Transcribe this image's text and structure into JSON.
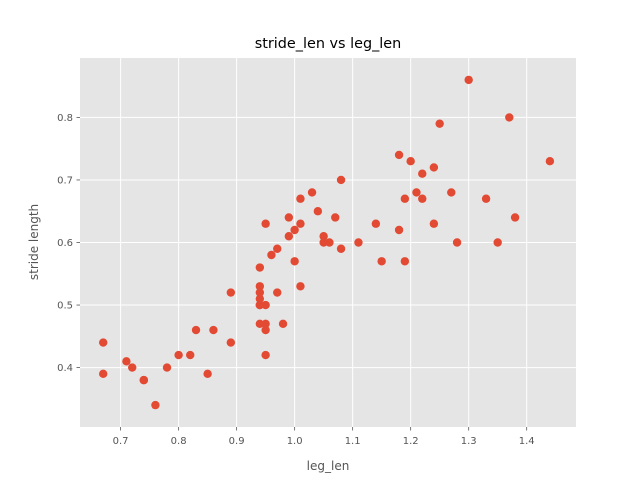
{
  "chart_data": {
    "type": "scatter",
    "title": "stride_len vs leg_len",
    "xlabel": "leg_len",
    "ylabel": "stride length",
    "xlim": [
      0.63,
      1.485
    ],
    "ylim": [
      0.305,
      0.895
    ],
    "xticks": [
      0.7,
      0.8,
      0.9,
      1.0,
      1.1,
      1.2,
      1.3,
      1.4
    ],
    "xtick_labels": [
      "0.7",
      "0.8",
      "0.9",
      "1.0",
      "1.1",
      "1.2",
      "1.3",
      "1.4"
    ],
    "yticks": [
      0.4,
      0.5,
      0.6,
      0.7,
      0.8
    ],
    "ytick_labels": [
      "0.4",
      "0.5",
      "0.6",
      "0.7",
      "0.8"
    ],
    "grid": true,
    "colors": {
      "background": "#e5e5e5",
      "grid": "#ffffff",
      "marker": "#e24a33",
      "text": "#555555"
    },
    "x": [
      0.67,
      0.67,
      0.71,
      0.72,
      0.74,
      0.74,
      0.76,
      0.78,
      0.8,
      0.82,
      0.83,
      0.85,
      0.86,
      0.89,
      0.89,
      0.94,
      0.94,
      0.94,
      0.94,
      0.94,
      0.94,
      0.94,
      0.95,
      0.95,
      0.95,
      0.95,
      0.95,
      0.96,
      0.97,
      0.97,
      0.98,
      0.99,
      0.99,
      1.0,
      1.0,
      1.01,
      1.01,
      1.01,
      1.03,
      1.04,
      1.05,
      1.05,
      1.06,
      1.07,
      1.08,
      1.08,
      1.11,
      1.14,
      1.15,
      1.18,
      1.18,
      1.19,
      1.19,
      1.2,
      1.21,
      1.22,
      1.22,
      1.24,
      1.24,
      1.25,
      1.27,
      1.28,
      1.3,
      1.33,
      1.35,
      1.37,
      1.38,
      1.44
    ],
    "y": [
      0.44,
      0.39,
      0.41,
      0.4,
      0.38,
      0.38,
      0.34,
      0.4,
      0.42,
      0.42,
      0.46,
      0.39,
      0.46,
      0.52,
      0.44,
      0.56,
      0.53,
      0.52,
      0.51,
      0.5,
      0.47,
      0.5,
      0.63,
      0.5,
      0.47,
      0.46,
      0.42,
      0.58,
      0.59,
      0.52,
      0.47,
      0.64,
      0.61,
      0.62,
      0.57,
      0.67,
      0.63,
      0.53,
      0.68,
      0.65,
      0.61,
      0.6,
      0.6,
      0.64,
      0.7,
      0.59,
      0.6,
      0.63,
      0.57,
      0.74,
      0.62,
      0.67,
      0.57,
      0.73,
      0.68,
      0.71,
      0.67,
      0.72,
      0.63,
      0.79,
      0.68,
      0.6,
      0.86,
      0.67,
      0.6,
      0.8,
      0.64,
      0.73
    ]
  }
}
